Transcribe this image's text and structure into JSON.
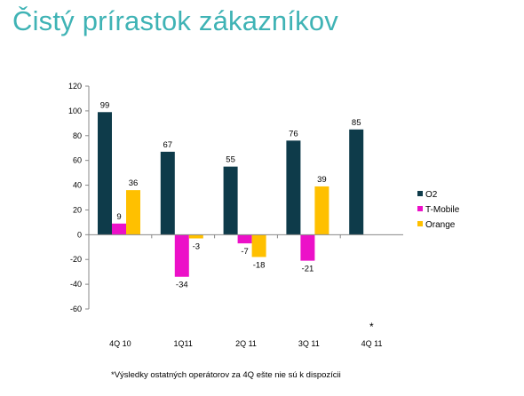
{
  "title": "Čistý prírastok zákazníkov",
  "footnote": "*Výsledky ostatných operátorov za 4Q ešte nie sú k dispozícii",
  "asterisk": "*",
  "chart_data": {
    "type": "bar",
    "categories": [
      "4Q 10",
      "1Q11",
      "2Q 11",
      "3Q 11",
      "4Q 11"
    ],
    "series": [
      {
        "name": "O2",
        "color": "#0e3b4a",
        "values": [
          99,
          67,
          55,
          76,
          85
        ]
      },
      {
        "name": "T-Mobile",
        "color": "#ec10c8",
        "values": [
          9,
          -34,
          -7,
          -21,
          null
        ]
      },
      {
        "name": "Orange",
        "color": "#ffc000",
        "values": [
          36,
          -3,
          -18,
          39,
          null
        ]
      }
    ],
    "ylim": [
      -60,
      120
    ],
    "yticks": [
      -60,
      -40,
      -20,
      0,
      20,
      40,
      60,
      80,
      100,
      120
    ],
    "grid": false,
    "legend": "right"
  }
}
